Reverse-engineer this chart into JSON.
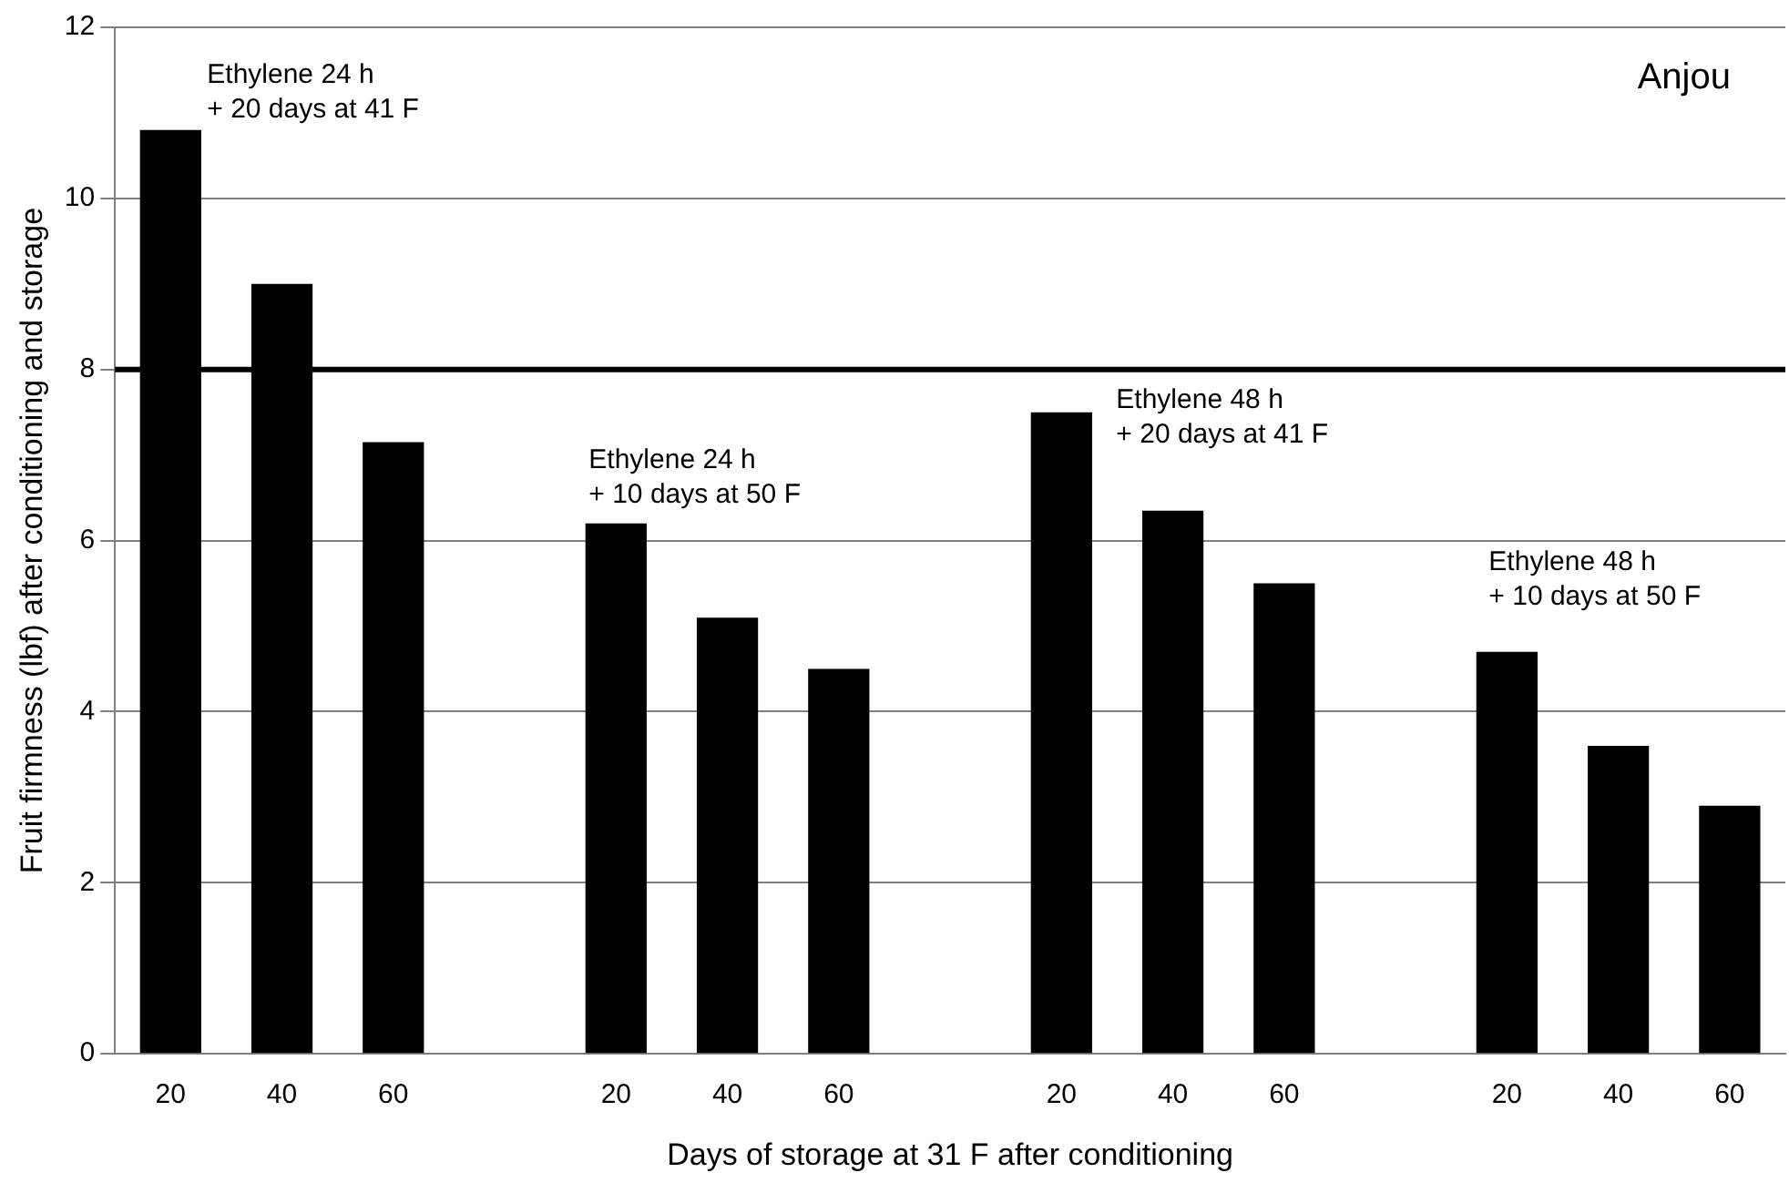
{
  "chart_data": {
    "type": "bar",
    "xlabel": "Days of storage at 31 F after conditioning",
    "ylabel": "Fruit firmness (lbf) after conditioning and storage",
    "categories": [
      "20",
      "40",
      "60",
      null,
      "20",
      "40",
      "60",
      null,
      "20",
      "40",
      "60",
      null,
      "20",
      "40",
      "60"
    ],
    "values": [
      10.8,
      9.0,
      7.15,
      null,
      6.2,
      5.1,
      4.5,
      null,
      7.5,
      6.35,
      5.5,
      null,
      4.7,
      3.6,
      2.9
    ],
    "color": "#000000",
    "ylim": [
      0,
      12
    ],
    "yticks": [
      0,
      2,
      4,
      6,
      8,
      10,
      12
    ],
    "grid": "y",
    "legend": false,
    "ref_lines": [
      {
        "axis": "y",
        "value": 8,
        "label": null,
        "color": "#000000",
        "line_style": "solid"
      }
    ],
    "annotations": [
      "Anjou",
      "Ethylene 24 h\n+ 20 days at 41 F",
      "Ethylene 24 h\n+ 10 days at 50 F",
      "Ethylene 48 h\n+ 20 days at 41 F",
      "Ethylene 48 h\n+ 10 days at 50 F"
    ]
  }
}
